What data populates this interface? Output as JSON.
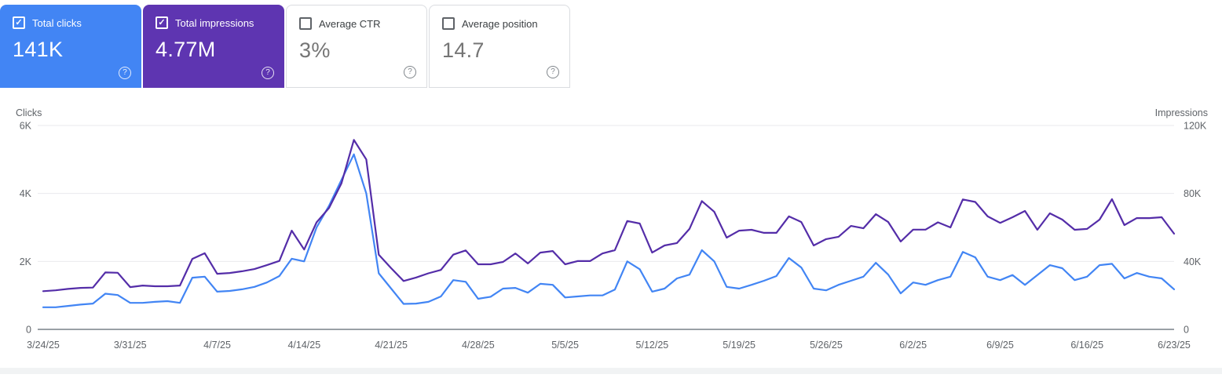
{
  "ui": {
    "check_glyph": "✓",
    "help_glyph": "?"
  },
  "cards": [
    {
      "label": "Total clicks",
      "value": "141K",
      "checked": true,
      "bg": "#4285f4"
    },
    {
      "label": "Total impressions",
      "value": "4.77M",
      "checked": true,
      "bg": "#5e35b1"
    },
    {
      "label": "Average CTR",
      "value": "3%",
      "checked": false,
      "bg": "#ffffff"
    },
    {
      "label": "Average position",
      "value": "14.7",
      "checked": false,
      "bg": "#ffffff"
    }
  ],
  "chart_data": {
    "type": "line",
    "x_tick_every": 7,
    "grid_color": "#e9eaed",
    "axis_line_color": "#9aa0a6",
    "tick_text_color": "#5f6368",
    "yaxis_left": {
      "title": "Clicks",
      "tick_labels": [
        "0",
        "2K",
        "4K",
        "6K"
      ],
      "range": [
        0,
        6000
      ]
    },
    "yaxis_right": {
      "title": "Impressions",
      "tick_labels": [
        "0",
        "40K",
        "80K",
        "120K"
      ],
      "range": [
        0,
        120000
      ]
    },
    "dates": [
      "3/24/25",
      "3/25/25",
      "3/26/25",
      "3/27/25",
      "3/28/25",
      "3/29/25",
      "3/30/25",
      "3/31/25",
      "4/1/25",
      "4/2/25",
      "4/3/25",
      "4/4/25",
      "4/5/25",
      "4/6/25",
      "4/7/25",
      "4/8/25",
      "4/9/25",
      "4/10/25",
      "4/11/25",
      "4/12/25",
      "4/13/25",
      "4/14/25",
      "4/15/25",
      "4/16/25",
      "4/17/25",
      "4/18/25",
      "4/19/25",
      "4/20/25",
      "4/21/25",
      "4/22/25",
      "4/23/25",
      "4/24/25",
      "4/25/25",
      "4/26/25",
      "4/27/25",
      "4/28/25",
      "4/29/25",
      "4/30/25",
      "5/1/25",
      "5/2/25",
      "5/3/25",
      "5/4/25",
      "5/5/25",
      "5/6/25",
      "5/7/25",
      "5/8/25",
      "5/9/25",
      "5/10/25",
      "5/11/25",
      "5/12/25",
      "5/13/25",
      "5/14/25",
      "5/15/25",
      "5/16/25",
      "5/17/25",
      "5/18/25",
      "5/19/25",
      "5/20/25",
      "5/21/25",
      "5/22/25",
      "5/23/25",
      "5/24/25",
      "5/25/25",
      "5/26/25",
      "5/27/25",
      "5/28/25",
      "5/29/25",
      "5/30/25",
      "5/31/25",
      "6/1/25",
      "6/2/25",
      "6/3/25",
      "6/4/25",
      "6/5/25",
      "6/6/25",
      "6/7/25",
      "6/8/25",
      "6/9/25",
      "6/10/25",
      "6/11/25",
      "6/12/25",
      "6/13/25",
      "6/14/25",
      "6/15/25",
      "6/16/25",
      "6/17/25",
      "6/18/25",
      "6/19/25",
      "6/20/25",
      "6/21/25",
      "6/22/25",
      "6/23/25"
    ],
    "series": [
      {
        "name": "Clicks",
        "color": "#4285f4",
        "axis": "left",
        "max": 6000,
        "values": [
          650,
          650,
          690,
          730,
          760,
          1050,
          1010,
          780,
          780,
          810,
          830,
          780,
          1520,
          1550,
          1110,
          1130,
          1180,
          1250,
          1380,
          1570,
          2080,
          2000,
          3000,
          3640,
          4400,
          5150,
          4000,
          1650,
          1200,
          750,
          760,
          810,
          970,
          1450,
          1400,
          900,
          960,
          1200,
          1220,
          1080,
          1340,
          1310,
          940,
          970,
          1000,
          1000,
          1170,
          2000,
          1770,
          1110,
          1200,
          1500,
          1610,
          2330,
          2000,
          1250,
          1200,
          1310,
          1430,
          1570,
          2100,
          1820,
          1200,
          1150,
          1310,
          1430,
          1550,
          1960,
          1610,
          1060,
          1380,
          1310,
          1450,
          1550,
          2280,
          2120,
          1550,
          1450,
          1600,
          1310,
          1600,
          1890,
          1800,
          1450,
          1550,
          1890,
          1930,
          1500,
          1660,
          1550,
          1500,
          1180
        ]
      },
      {
        "name": "Impressions",
        "color": "#542da8",
        "axis": "right",
        "max": 120000,
        "values": [
          22500,
          23000,
          23800,
          24400,
          24600,
          33500,
          33300,
          24900,
          25800,
          25400,
          25400,
          25800,
          41500,
          44800,
          32700,
          33200,
          34200,
          35500,
          37800,
          40300,
          58100,
          47000,
          63000,
          71500,
          86000,
          111500,
          100000,
          44000,
          36000,
          28500,
          30500,
          33000,
          35000,
          44000,
          46500,
          38300,
          38300,
          39700,
          44700,
          38800,
          45200,
          46100,
          38300,
          40200,
          40200,
          44700,
          46600,
          63800,
          62300,
          45200,
          49400,
          50800,
          59100,
          75500,
          69200,
          54000,
          58100,
          58600,
          56800,
          56800,
          66500,
          63200,
          49400,
          53100,
          54500,
          60900,
          59500,
          67800,
          63200,
          51700,
          58700,
          58700,
          63000,
          60000,
          76500,
          75000,
          66500,
          62700,
          66000,
          69700,
          58600,
          68300,
          64600,
          58600,
          59100,
          64600,
          76600,
          61400,
          65500,
          65500,
          66000,
          56300
        ]
      }
    ]
  }
}
